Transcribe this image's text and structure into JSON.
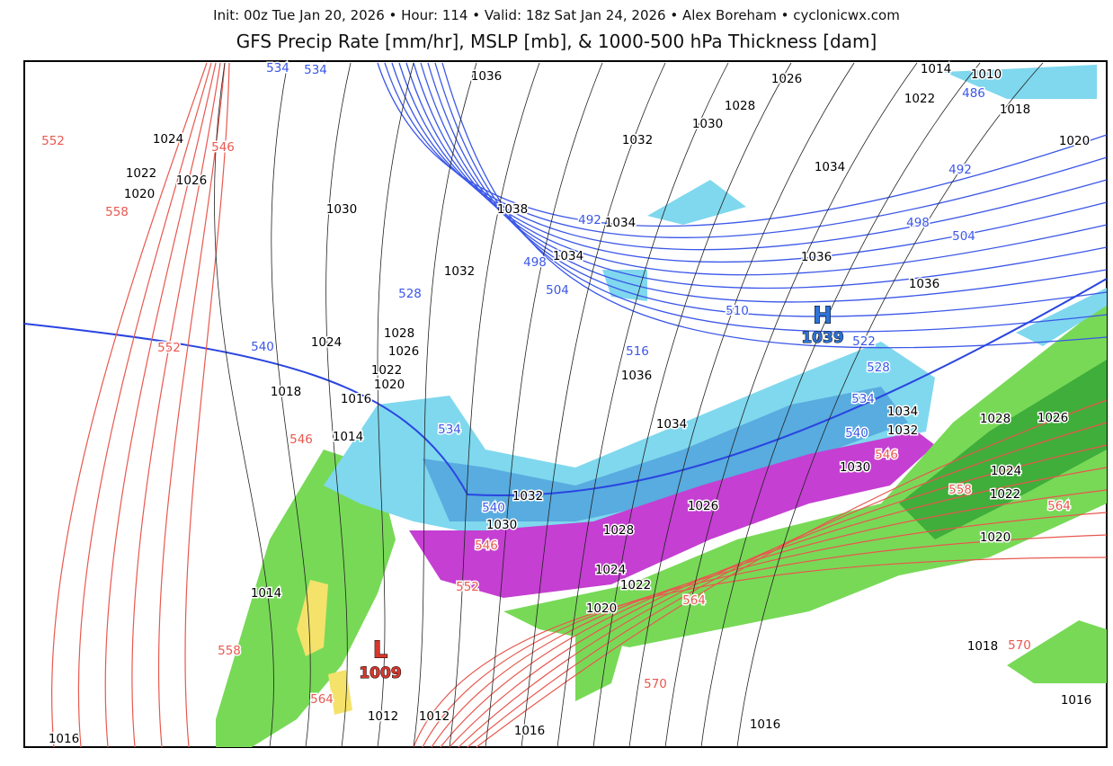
{
  "header": {
    "subtitle": "Init: 00z Tue Jan 20, 2026 • Hour: 114 • Valid: 18z Sat Jan 24, 2026 • Alex Boreham • cyclonicwx.com",
    "title": "GFS Precip Rate [mm/hr], MSLP [mb], & 1000-500 hPa Thickness [dam]"
  },
  "colors": {
    "rain_light": "#78d957",
    "rain_heavy": "#3fae3a",
    "snow_light": "#7fd8ee",
    "snow_heavy": "#3d8fd6",
    "mix": "#c53fd2",
    "freezing": "#e8359f",
    "heavy_rain": "#f5e26a",
    "isobar": "#000000",
    "thickness_cold": "#3b57e8",
    "thickness_warm": "#e8584f"
  },
  "centers": {
    "high": {
      "letter": "H",
      "value": "1039"
    },
    "low": {
      "letter": "L",
      "value": "1009"
    }
  },
  "isobar_labels": [
    "1036",
    "1026",
    "1014",
    "1010",
    "1022",
    "1018",
    "1028",
    "1030",
    "1032",
    "1020",
    "1024",
    "1034",
    "1022",
    "1026",
    "1020",
    "1030",
    "1038",
    "1034",
    "1034",
    "1032",
    "1036",
    "1036",
    "1028",
    "1024",
    "1026",
    "1022",
    "1020",
    "1018",
    "1016",
    "1036",
    "1034",
    "1034",
    "1032",
    "1014",
    "1030",
    "1028",
    "1026",
    "1024",
    "1032",
    "1022",
    "1030",
    "1026",
    "1028",
    "1020",
    "1024",
    "1022",
    "1014",
    "1020",
    "1018",
    "1012",
    "1012",
    "1016",
    "1016",
    "1016",
    "1016"
  ],
  "thickness_labels_blue": [
    "534",
    "534",
    "486",
    "492",
    "492",
    "498",
    "498",
    "504",
    "504",
    "510",
    "516",
    "522",
    "528",
    "528",
    "534",
    "534",
    "540",
    "540",
    "540"
  ],
  "thickness_labels_red": [
    "552",
    "546",
    "558",
    "552",
    "546",
    "546",
    "558",
    "564",
    "546",
    "552",
    "564",
    "558",
    "564",
    "570",
    "570"
  ]
}
